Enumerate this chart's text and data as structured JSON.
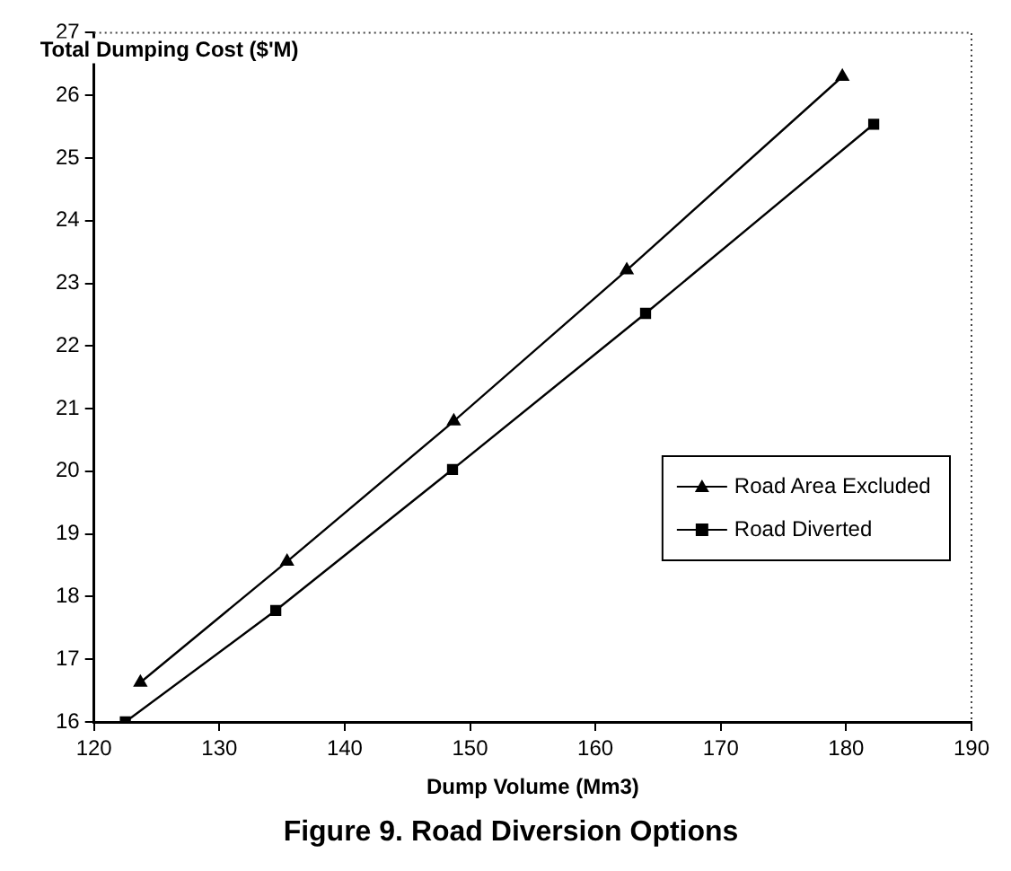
{
  "chart_data": {
    "type": "line",
    "title": "Figure 9. Road Diversion Options",
    "xlabel": "Dump Volume (Mm3)",
    "ylabel": "Total Dumping Cost ($'M)",
    "xlim": [
      120,
      190
    ],
    "xticks": [
      120,
      130,
      140,
      150,
      160,
      170,
      180,
      190
    ],
    "ylim": [
      16,
      27
    ],
    "yticks": [
      16,
      17,
      18,
      19,
      20,
      21,
      22,
      23,
      24,
      25,
      26,
      27
    ],
    "grid": false,
    "legend": "bottom right",
    "line_style": "solid",
    "series": [
      {
        "name": "Road Area Excluded",
        "color": "#000000",
        "marker": "triangle",
        "x": [
          123.7,
          135.4,
          148.7,
          162.5,
          179.7
        ],
        "values": [
          16.63,
          18.56,
          20.8,
          23.21,
          26.3
        ]
      },
      {
        "name": "Road Diverted",
        "color": "#000000",
        "marker": "square",
        "x": [
          122.5,
          134.5,
          148.6,
          164.0,
          182.2
        ],
        "values": [
          16.0,
          17.78,
          20.03,
          22.52,
          25.54
        ]
      }
    ]
  }
}
